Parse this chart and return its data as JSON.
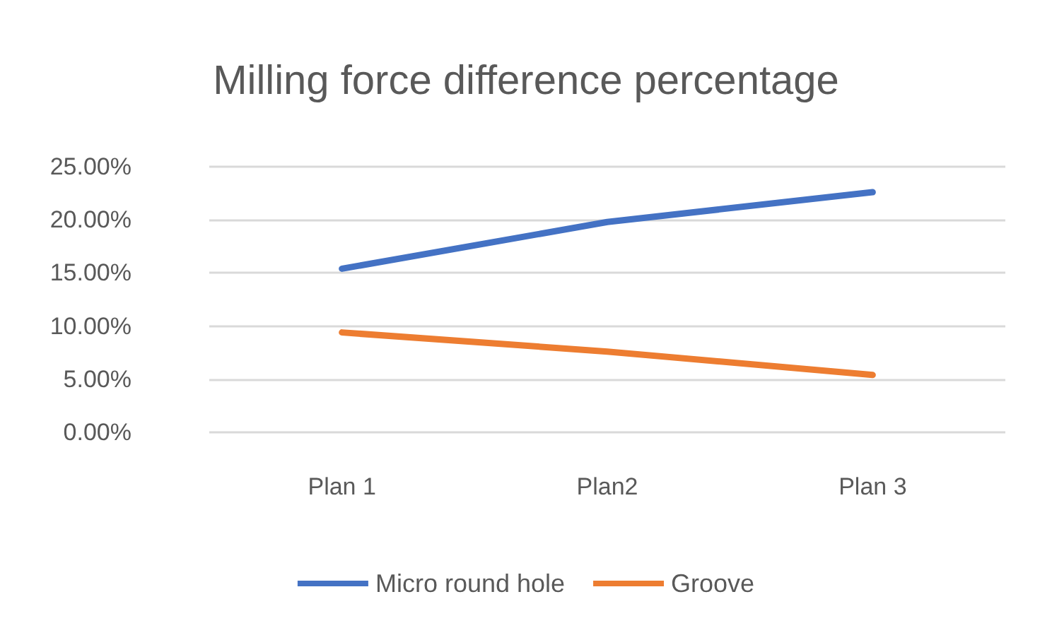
{
  "chart_data": {
    "type": "line",
    "title": "Milling force difference percentage",
    "categories": [
      "Plan 1",
      "Plan2",
      "Plan 3"
    ],
    "series": [
      {
        "name": "Micro round hole",
        "color": "#4472c4",
        "values": [
          15.4,
          19.8,
          22.6
        ]
      },
      {
        "name": "Groove",
        "color": "#ed7d31",
        "values": [
          9.4,
          7.6,
          5.4
        ]
      }
    ],
    "ylim": [
      0,
      25
    ],
    "yticks": [
      {
        "value": 0,
        "label": "0.00%"
      },
      {
        "value": 5,
        "label": "5.00%"
      },
      {
        "value": 10,
        "label": "10.00%"
      },
      {
        "value": 15,
        "label": "15.00%"
      },
      {
        "value": 20,
        "label": "20.00%"
      },
      {
        "value": 25,
        "label": "25.00%"
      }
    ],
    "grid": "y",
    "legend": "bottom",
    "marker": "none",
    "line_style": "solid"
  }
}
